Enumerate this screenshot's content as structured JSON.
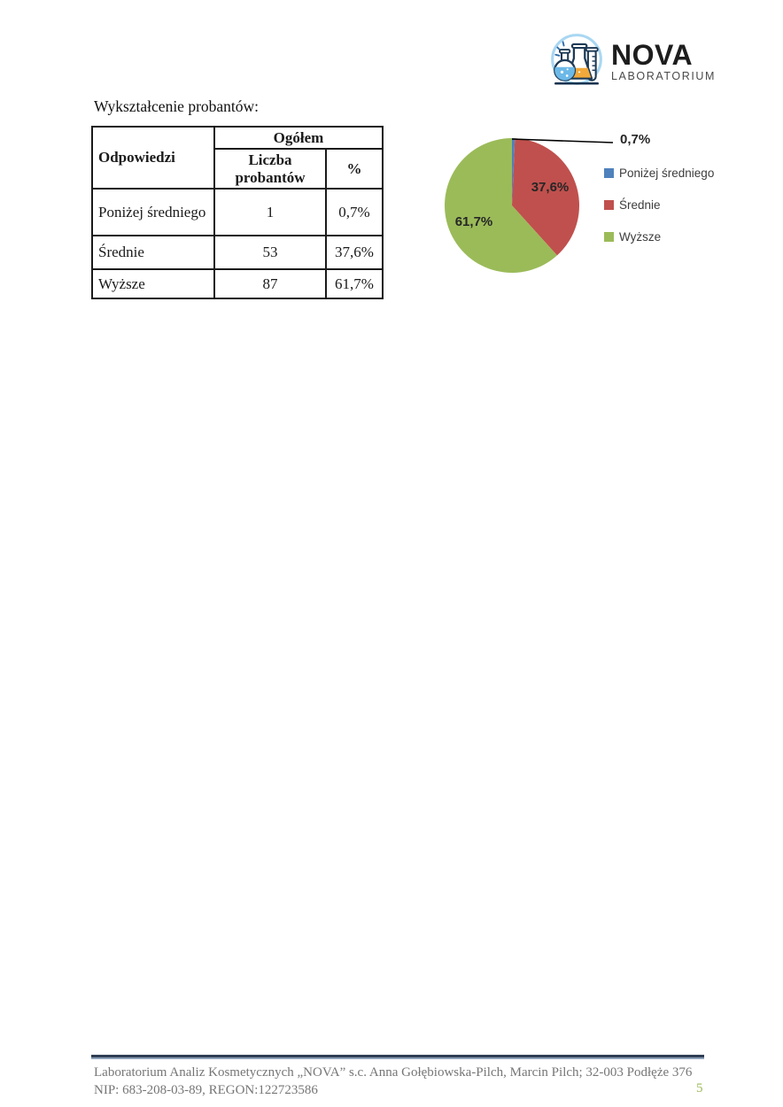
{
  "logo": {
    "name": "NOVA",
    "subtitle": "LABORATORIUM"
  },
  "heading": "Wykształcenie probantów:",
  "table": {
    "col_group_header": "Ogółem",
    "col_headers": [
      "Odpowiedzi",
      "Liczba probantów",
      "%"
    ],
    "rows": [
      {
        "label": "Poniżej średniego",
        "count": "1",
        "percent": "0,7%"
      },
      {
        "label": "Średnie",
        "count": "53",
        "percent": "37,6%"
      },
      {
        "label": "Wyższe",
        "count": "87",
        "percent": "61,7%"
      }
    ]
  },
  "chart_data": {
    "type": "pie",
    "categories": [
      "Poniżej średniego",
      "Średnie",
      "Wyższe"
    ],
    "values": [
      0.7,
      37.6,
      61.7
    ],
    "labels": [
      "0,7%",
      "37,6%",
      "61,7%"
    ],
    "colors": [
      "#4F81BD",
      "#C0504D",
      "#9BBB59"
    ],
    "legend_position": "right",
    "start_angle_deg": 0,
    "title": ""
  },
  "footer": {
    "line1": "Laboratorium Analiz Kosmetycznych „NOVA” s.c. Anna Gołębiowska-Pilch, Marcin Pilch; 32-003 Podłęże 376",
    "line2": "NIP: 683-208-03-89, REGON:122723586",
    "page_number": "5"
  }
}
